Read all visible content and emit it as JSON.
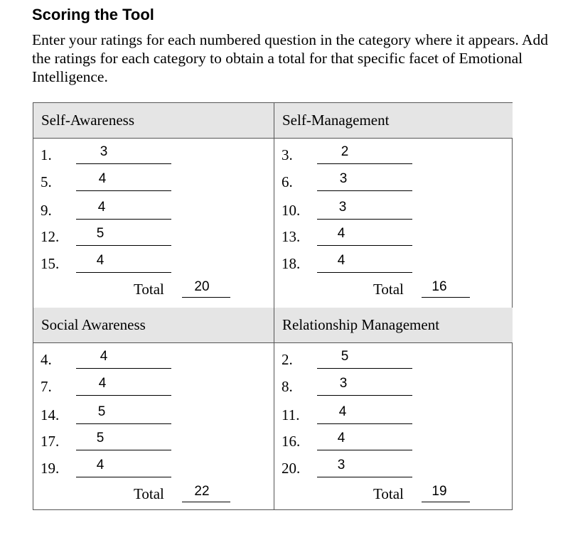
{
  "heading": "Scoring the Tool",
  "intro": "Enter your ratings for each numbered question in the category where it appears. Add the ratings for each category to obtain a total for that specific facet of Emotional Intelligence.",
  "categories": [
    {
      "name": "Self-Awareness",
      "items": [
        {
          "num": "1.",
          "rating": "3"
        },
        {
          "num": "5.",
          "rating": "4"
        },
        {
          "num": "9.",
          "rating": "4"
        },
        {
          "num": "12.",
          "rating": "5"
        },
        {
          "num": "15.",
          "rating": "4"
        }
      ],
      "total_label": "Total",
      "total": "20"
    },
    {
      "name": "Self-Management",
      "items": [
        {
          "num": "3.",
          "rating": "2"
        },
        {
          "num": "6.",
          "rating": "3"
        },
        {
          "num": "10.",
          "rating": "3"
        },
        {
          "num": "13.",
          "rating": "4"
        },
        {
          "num": "18.",
          "rating": "4"
        }
      ],
      "total_label": "Total",
      "total": "16"
    },
    {
      "name": "Social Awareness",
      "items": [
        {
          "num": "4.",
          "rating": "4"
        },
        {
          "num": "7.",
          "rating": "4"
        },
        {
          "num": "14.",
          "rating": "5"
        },
        {
          "num": "17.",
          "rating": "5"
        },
        {
          "num": "19.",
          "rating": "4"
        }
      ],
      "total_label": "Total",
      "total": "22"
    },
    {
      "name": "Relationship Management",
      "items": [
        {
          "num": "2.",
          "rating": "5"
        },
        {
          "num": "8.",
          "rating": "3"
        },
        {
          "num": "11.",
          "rating": "4"
        },
        {
          "num": "16.",
          "rating": "4"
        },
        {
          "num": "20.",
          "rating": "3"
        }
      ],
      "total_label": "Total",
      "total": "19"
    }
  ]
}
